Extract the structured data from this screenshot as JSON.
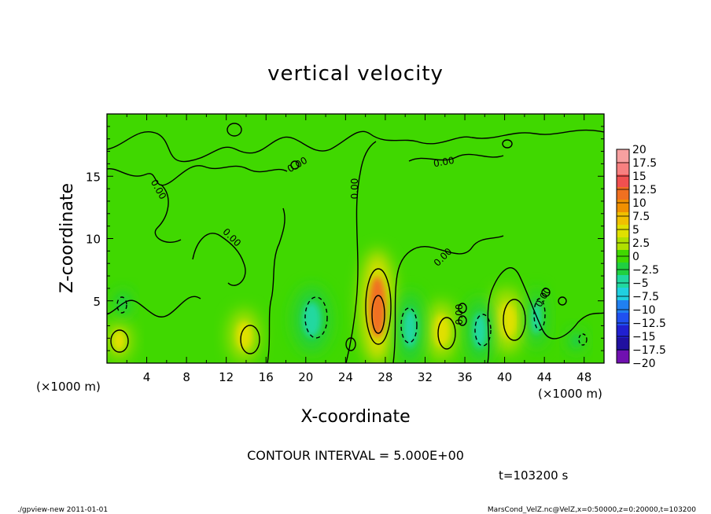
{
  "chart_data": {
    "type": "heatmap",
    "title": "vertical velocity",
    "xlabel": "X-coordinate",
    "ylabel": "Z-coordinate",
    "x_unit_left": "(×1000 m)",
    "x_unit_right": "(×1000 m)",
    "xlim": [
      0,
      50
    ],
    "ylim": [
      0,
      20
    ],
    "xticks": [
      4,
      8,
      12,
      16,
      20,
      24,
      28,
      32,
      36,
      40,
      44,
      48
    ],
    "yticks": [
      5,
      10,
      15
    ],
    "contour_interval_label": "CONTOUR INTERVAL = 5.000E+00",
    "time_label": "t=103200 s",
    "contour_labels": [
      "0.00",
      "0.00",
      "0.00",
      "0.00",
      "0.00",
      "0.00",
      "0.00",
      "0.00"
    ],
    "colorbar": {
      "labels": [
        "20",
        "17.5",
        "15",
        "12.5",
        "10",
        "7.5",
        "5",
        "2.5",
        "0",
        "−2.5",
        "−5",
        "−7.5",
        "−10",
        "−12.5",
        "−15",
        "−17.5",
        "−20"
      ],
      "values": [
        20,
        17.5,
        15,
        12.5,
        10,
        7.5,
        5,
        2.5,
        0,
        -2.5,
        -5,
        -7.5,
        -10,
        -12.5,
        -15,
        -17.5,
        -20
      ],
      "colors": [
        "#f7a0a0",
        "#f78080",
        "#f05050",
        "#f07020",
        "#f09000",
        "#f0c000",
        "#e0e000",
        "#b0e000",
        "#40d800",
        "#20d040",
        "#20d8a0",
        "#20d0e0",
        "#2080f0",
        "#2050f0",
        "#2020d0",
        "#2010a0",
        "#7010b0"
      ]
    },
    "features": [
      {
        "x": 27.2,
        "z": 4.5,
        "value": 12,
        "rx": 1.2,
        "rz": 3.5
      },
      {
        "x": 40.2,
        "z": 3.4,
        "value": 5,
        "rx": 1.4,
        "rz": 2.0
      },
      {
        "x": 33.6,
        "z": 2.6,
        "value": 4,
        "rx": 1.2,
        "rz": 1.8
      },
      {
        "x": 13.8,
        "z": 2.2,
        "value": 4,
        "rx": 1.1,
        "rz": 1.6
      },
      {
        "x": 1.2,
        "z": 1.8,
        "value": 4,
        "rx": 0.9,
        "rz": 1.2
      },
      {
        "x": 20.6,
        "z": 3.5,
        "value": -5,
        "rx": 1.3,
        "rz": 2.0
      },
      {
        "x": 30.5,
        "z": 2.8,
        "value": -4,
        "rx": 1.0,
        "rz": 2.2
      },
      {
        "x": 37.5,
        "z": 2.6,
        "value": -5,
        "rx": 1.0,
        "rz": 2.0
      },
      {
        "x": 43.2,
        "z": 3.6,
        "value": -6,
        "rx": 0.7,
        "rz": 1.8
      },
      {
        "x": 1.6,
        "z": 4.8,
        "value": -3,
        "rx": 0.6,
        "rz": 0.8
      },
      {
        "x": 47.2,
        "z": 1.8,
        "value": -3,
        "rx": 0.6,
        "rz": 0.7
      }
    ]
  },
  "footer": {
    "left": "./gpview-new   2011-01-01",
    "right": "MarsCond_VelZ.nc@VelZ,x=0:50000,z=0:20000,t=103200"
  }
}
